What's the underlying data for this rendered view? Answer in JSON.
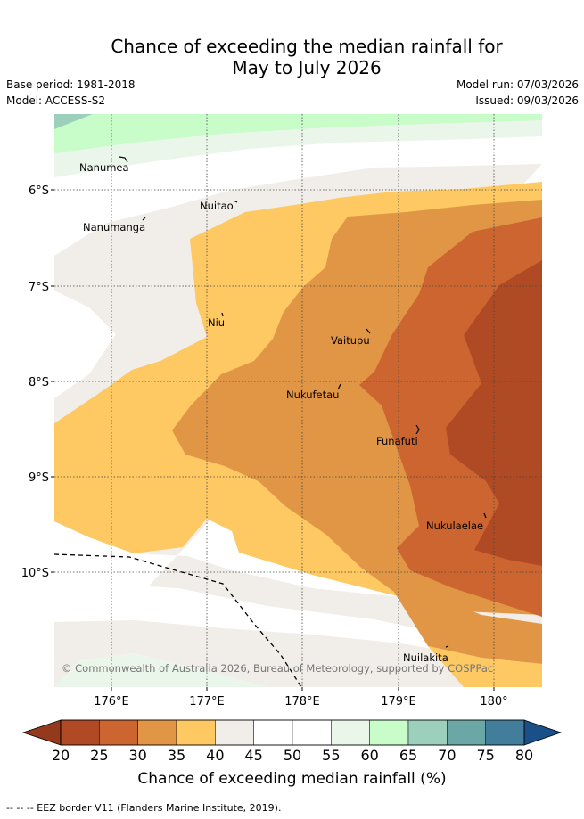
{
  "header": {
    "title_line1": "Chance of exceeding the median rainfall for",
    "title_line2": "May to July 2026",
    "base_period": "Base period: 1981-2018",
    "model": "Model: ACCESS-S2",
    "model_run": "Model run: 07/03/2026",
    "issued": "Issued: 09/03/2026"
  },
  "map": {
    "lat_labels": [
      "6°S",
      "7°S",
      "8°S",
      "9°S",
      "10°S"
    ],
    "lon_labels": [
      "176°E",
      "177°E",
      "178°E",
      "179°E",
      "180°"
    ],
    "islands": [
      "Nanumea",
      "Nuitao",
      "Nanumanga",
      "Niu",
      "Vaitupu",
      "Nukufetau",
      "Funafuti",
      "Nukulaelae",
      "Nuilakita"
    ],
    "copyright": "© Commonwealth of Australia 2026, Bureau of Meteorology, supported by COSPPac"
  },
  "colorbar": {
    "ticks": [
      "20",
      "25",
      "30",
      "35",
      "40",
      "45",
      "50",
      "55",
      "60",
      "65",
      "70",
      "75",
      "80"
    ],
    "colors": [
      "#b04a25",
      "#cc652f",
      "#e19645",
      "#fec962",
      "#f1ede8",
      "#ffffff",
      "#ffffff",
      "#ebf6eb",
      "#c8fcc8",
      "#9dd0bc",
      "#6ca7a7",
      "#427e9b"
    ],
    "under_color": "#94391c",
    "over_color": "#1b4f88",
    "label": "Chance of exceeding median rainfall (%)"
  },
  "footnote": "-- -- -- EEZ border V11 (Flanders Marine Institute, 2019)."
}
